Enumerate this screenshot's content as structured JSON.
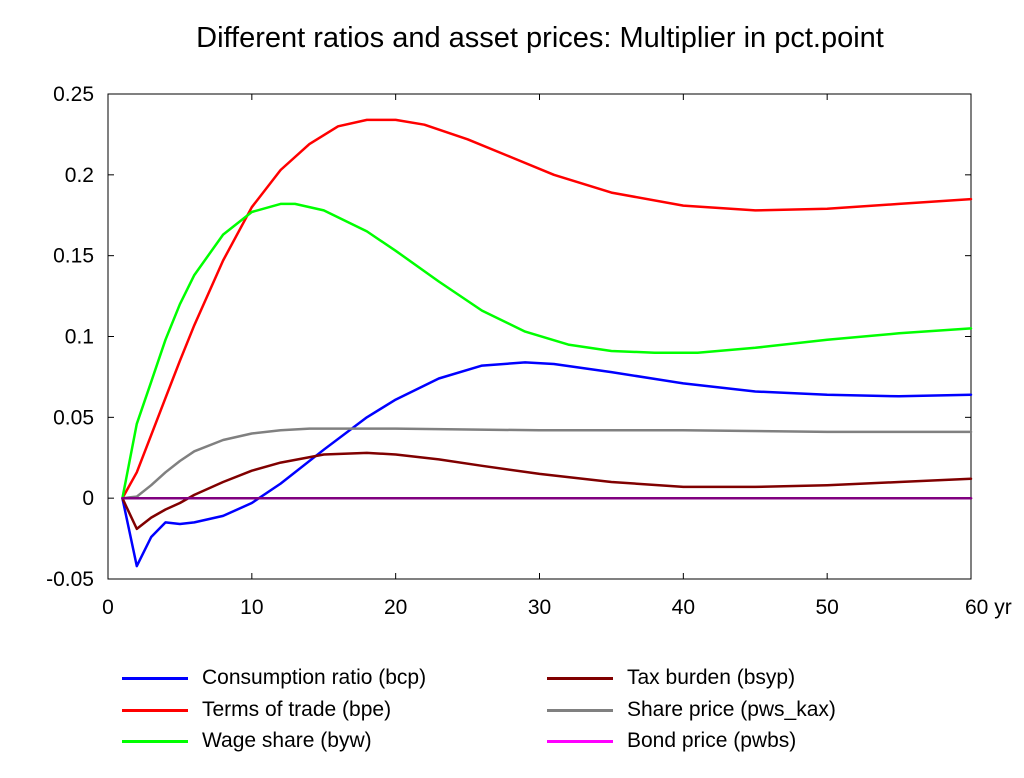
{
  "chart_data": {
    "type": "line",
    "title": "Different ratios and asset prices: Multiplier in pct.point",
    "xlabel": "",
    "ylabel": "",
    "xlim": [
      0,
      60
    ],
    "ylim": [
      -0.05,
      0.25
    ],
    "x_ticks": [
      0,
      10,
      20,
      30,
      40,
      50,
      60
    ],
    "x_tick_labels": [
      "0",
      "10",
      "20",
      "30",
      "40",
      "50",
      "60 yr"
    ],
    "y_ticks": [
      -0.05,
      0,
      0.05,
      0.1,
      0.15,
      0.2,
      0.25
    ],
    "y_tick_labels": [
      "-0.05",
      "0",
      "0.05",
      "0.1",
      "0.15",
      "0.2",
      "0.25"
    ],
    "grid": false,
    "legend_position": "bottom",
    "series": [
      {
        "name": "Consumption ratio (bcp)",
        "color": "#0000ff",
        "x": [
          1,
          2,
          3,
          4,
          5,
          6,
          8,
          10,
          12,
          15,
          18,
          20,
          23,
          26,
          29,
          31,
          35,
          40,
          45,
          50,
          55,
          60
        ],
        "y": [
          0,
          -0.042,
          -0.024,
          -0.015,
          -0.016,
          -0.015,
          -0.011,
          -0.003,
          0.009,
          0.03,
          0.05,
          0.061,
          0.074,
          0.082,
          0.084,
          0.083,
          0.078,
          0.071,
          0.066,
          0.064,
          0.063,
          0.064
        ]
      },
      {
        "name": "Terms of trade (bpe)",
        "color": "#ff0000",
        "x": [
          1,
          2,
          3,
          4,
          5,
          6,
          8,
          10,
          12,
          14,
          16,
          18,
          20,
          22,
          25,
          28,
          31,
          35,
          40,
          45,
          50,
          55,
          60
        ],
        "y": [
          0,
          0.016,
          0.039,
          0.062,
          0.085,
          0.107,
          0.147,
          0.18,
          0.203,
          0.219,
          0.23,
          0.234,
          0.234,
          0.231,
          0.222,
          0.211,
          0.2,
          0.189,
          0.181,
          0.178,
          0.179,
          0.182,
          0.185
        ]
      },
      {
        "name": "Wage share (byw)",
        "color": "#00ff00",
        "x": [
          1,
          2,
          3,
          4,
          5,
          6,
          8,
          10,
          12,
          13,
          15,
          18,
          20,
          23,
          26,
          29,
          32,
          35,
          38,
          41,
          45,
          50,
          55,
          60
        ],
        "y": [
          0,
          0.046,
          0.072,
          0.098,
          0.12,
          0.138,
          0.163,
          0.177,
          0.182,
          0.182,
          0.178,
          0.165,
          0.153,
          0.134,
          0.116,
          0.103,
          0.095,
          0.091,
          0.09,
          0.09,
          0.093,
          0.098,
          0.102,
          0.105
        ]
      },
      {
        "name": "Tax burden (bsyp)",
        "color": "#800000",
        "x": [
          1,
          2,
          3,
          4,
          5,
          6,
          8,
          10,
          12,
          15,
          18,
          20,
          23,
          26,
          30,
          35,
          40,
          45,
          50,
          55,
          60
        ],
        "y": [
          0,
          -0.019,
          -0.012,
          -0.007,
          -0.003,
          0.002,
          0.01,
          0.017,
          0.022,
          0.027,
          0.028,
          0.027,
          0.024,
          0.02,
          0.015,
          0.01,
          0.007,
          0.007,
          0.008,
          0.01,
          0.012
        ]
      },
      {
        "name": "Share price (pws_kax)",
        "color": "#808080",
        "x": [
          1,
          2,
          3,
          4,
          5,
          6,
          8,
          10,
          12,
          14,
          16,
          20,
          30,
          40,
          50,
          60
        ],
        "y": [
          0,
          0.001,
          0.008,
          0.016,
          0.023,
          0.029,
          0.036,
          0.04,
          0.042,
          0.043,
          0.043,
          0.043,
          0.042,
          0.042,
          0.041,
          0.041
        ]
      },
      {
        "name": "Bond price (pwbs)",
        "color": "#ff00ff",
        "x": [
          1,
          60
        ],
        "y": [
          0,
          0
        ]
      },
      {
        "name": "",
        "color": "#800080",
        "x": [
          1,
          60
        ],
        "y": [
          0,
          0
        ]
      }
    ],
    "legend_series": [
      0,
      1,
      2,
      3,
      4,
      5
    ]
  }
}
